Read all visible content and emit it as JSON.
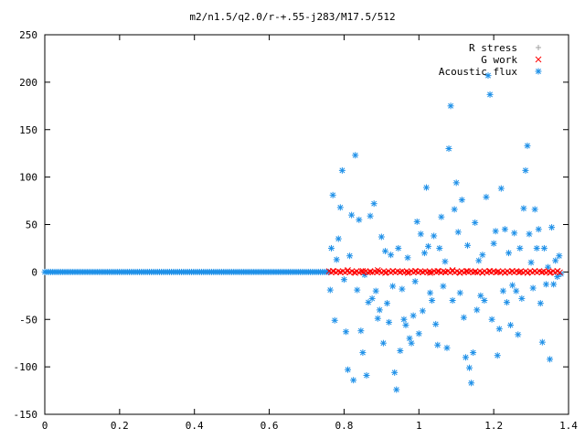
{
  "chart_data": {
    "type": "scatter",
    "title": "m2/n1.5/q2.0/r-+.55-j283/M17.5/512",
    "xlabel": "",
    "ylabel": "",
    "xlim": [
      0,
      1.4
    ],
    "ylim": [
      -150,
      250
    ],
    "x_ticks": [
      "0",
      "0.2",
      "0.4",
      "0.6",
      "0.8",
      "1",
      "1.2",
      "1.4"
    ],
    "y_ticks": [
      "250",
      "200",
      "150",
      "100",
      "50",
      "0",
      "-50",
      "-100",
      "-150"
    ],
    "grid": false,
    "legend_position": "top-right",
    "series": [
      {
        "name": "R stress",
        "marker": "+",
        "color": "#a0a0a0",
        "points": []
      },
      {
        "name": "G work",
        "marker": "x",
        "color": "#ff0000",
        "x_range": [
          0.76,
          1.38
        ],
        "points": [
          [
            0.77,
            1
          ],
          [
            0.79,
            0
          ],
          [
            0.81,
            2
          ],
          [
            0.83,
            -1
          ],
          [
            0.85,
            1
          ],
          [
            0.87,
            0
          ],
          [
            0.89,
            2
          ],
          [
            0.91,
            -1
          ],
          [
            0.93,
            1
          ],
          [
            0.95,
            0
          ],
          [
            0.97,
            -1
          ],
          [
            0.99,
            1
          ],
          [
            1.01,
            0
          ],
          [
            1.03,
            -1
          ],
          [
            1.05,
            1
          ],
          [
            1.07,
            0
          ],
          [
            1.09,
            2
          ],
          [
            1.11,
            -1
          ],
          [
            1.13,
            1
          ],
          [
            1.15,
            0
          ],
          [
            1.17,
            -1
          ],
          [
            1.19,
            1
          ],
          [
            1.21,
            0
          ],
          [
            1.23,
            -1
          ],
          [
            1.25,
            1
          ],
          [
            1.27,
            0
          ],
          [
            1.29,
            -1
          ],
          [
            1.31,
            1
          ],
          [
            1.33,
            0
          ],
          [
            1.35,
            -1
          ],
          [
            1.37,
            1
          ]
        ]
      },
      {
        "name": "Acoustic flux",
        "marker": "*",
        "color": "#1e90e8",
        "zero_band_x": [
          0.0,
          0.76
        ],
        "points": [
          [
            0.763,
            -19
          ],
          [
            0.766,
            25
          ],
          [
            0.77,
            81
          ],
          [
            0.775,
            -51
          ],
          [
            0.78,
            13
          ],
          [
            0.785,
            35
          ],
          [
            0.79,
            68
          ],
          [
            0.795,
            107
          ],
          [
            0.8,
            -8
          ],
          [
            0.805,
            -63
          ],
          [
            0.81,
            -103
          ],
          [
            0.815,
            17
          ],
          [
            0.82,
            60
          ],
          [
            0.825,
            -114
          ],
          [
            0.83,
            123
          ],
          [
            0.835,
            -19
          ],
          [
            0.84,
            55
          ],
          [
            0.845,
            -62
          ],
          [
            0.85,
            -85
          ],
          [
            0.855,
            -3
          ],
          [
            0.86,
            -109
          ],
          [
            0.865,
            -32
          ],
          [
            0.87,
            59
          ],
          [
            0.875,
            -28
          ],
          [
            0.88,
            72
          ],
          [
            0.885,
            -20
          ],
          [
            0.89,
            -49
          ],
          [
            0.895,
            -40
          ],
          [
            0.9,
            37
          ],
          [
            0.905,
            -75
          ],
          [
            0.91,
            22
          ],
          [
            0.915,
            -33
          ],
          [
            0.92,
            -53
          ],
          [
            0.925,
            18
          ],
          [
            0.93,
            -15
          ],
          [
            0.935,
            -106
          ],
          [
            0.94,
            -124
          ],
          [
            0.945,
            25
          ],
          [
            0.95,
            -83
          ],
          [
            0.955,
            -18
          ],
          [
            0.96,
            -50
          ],
          [
            0.965,
            -56
          ],
          [
            0.97,
            15
          ],
          [
            0.975,
            -70
          ],
          [
            0.98,
            -75
          ],
          [
            0.985,
            -46
          ],
          [
            0.99,
            -10
          ],
          [
            0.995,
            53
          ],
          [
            1.0,
            -65
          ],
          [
            1.005,
            40
          ],
          [
            1.01,
            -41
          ],
          [
            1.015,
            20
          ],
          [
            1.02,
            89
          ],
          [
            1.025,
            27
          ],
          [
            1.03,
            -22
          ],
          [
            1.035,
            -30
          ],
          [
            1.04,
            38
          ],
          [
            1.045,
            -55
          ],
          [
            1.05,
            -77
          ],
          [
            1.055,
            25
          ],
          [
            1.06,
            58
          ],
          [
            1.065,
            -15
          ],
          [
            1.07,
            11
          ],
          [
            1.075,
            -80
          ],
          [
            1.08,
            130
          ],
          [
            1.085,
            175
          ],
          [
            1.09,
            -30
          ],
          [
            1.095,
            66
          ],
          [
            1.1,
            94
          ],
          [
            1.105,
            42
          ],
          [
            1.11,
            -22
          ],
          [
            1.115,
            76
          ],
          [
            1.12,
            -48
          ],
          [
            1.125,
            -90
          ],
          [
            1.13,
            28
          ],
          [
            1.135,
            -101
          ],
          [
            1.14,
            -117
          ],
          [
            1.145,
            -85
          ],
          [
            1.15,
            52
          ],
          [
            1.155,
            -40
          ],
          [
            1.16,
            12
          ],
          [
            1.165,
            -25
          ],
          [
            1.17,
            18
          ],
          [
            1.175,
            -30
          ],
          [
            1.18,
            79
          ],
          [
            1.185,
            207
          ],
          [
            1.19,
            187
          ],
          [
            1.195,
            -50
          ],
          [
            1.2,
            30
          ],
          [
            1.205,
            43
          ],
          [
            1.21,
            -88
          ],
          [
            1.215,
            -60
          ],
          [
            1.22,
            88
          ],
          [
            1.225,
            -20
          ],
          [
            1.23,
            45
          ],
          [
            1.235,
            -32
          ],
          [
            1.24,
            20
          ],
          [
            1.245,
            -56
          ],
          [
            1.25,
            -14
          ],
          [
            1.255,
            41
          ],
          [
            1.26,
            -20
          ],
          [
            1.265,
            -66
          ],
          [
            1.27,
            25
          ],
          [
            1.275,
            -28
          ],
          [
            1.28,
            67
          ],
          [
            1.285,
            107
          ],
          [
            1.29,
            133
          ],
          [
            1.295,
            40
          ],
          [
            1.3,
            10
          ],
          [
            1.305,
            -17
          ],
          [
            1.31,
            66
          ],
          [
            1.315,
            25
          ],
          [
            1.32,
            45
          ],
          [
            1.325,
            -33
          ],
          [
            1.33,
            -74
          ],
          [
            1.335,
            25
          ],
          [
            1.34,
            -13
          ],
          [
            1.345,
            5
          ],
          [
            1.35,
            -92
          ],
          [
            1.355,
            47
          ],
          [
            1.36,
            -13
          ],
          [
            1.365,
            12
          ],
          [
            1.37,
            -5
          ],
          [
            1.375,
            17
          ],
          [
            1.38,
            -2
          ]
        ]
      }
    ]
  }
}
